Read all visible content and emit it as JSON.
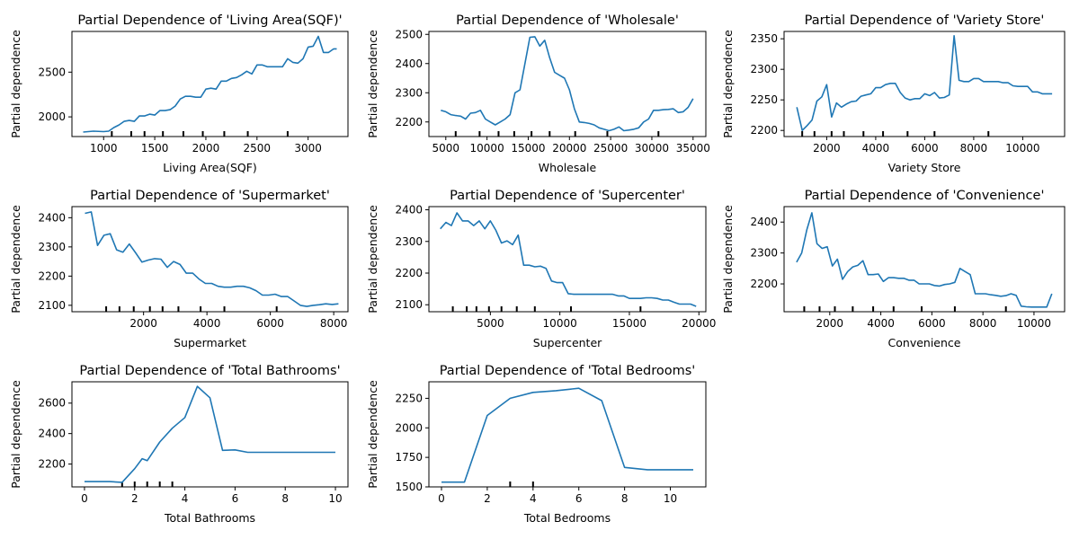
{
  "colors": {
    "line": "#1f77b4",
    "axis": "#000000",
    "background": "#ffffff"
  },
  "chart_data": [
    {
      "type": "line",
      "title": "Partial Dependence of 'Living Area(SQF)'",
      "xlabel": "Living Area(SQF)",
      "ylabel": "Partial dependence",
      "xlim": [
        690,
        3390
      ],
      "ylim": [
        1780,
        2955
      ],
      "xticks": [
        1000,
        1500,
        2000,
        2500,
        3000
      ],
      "yticks": [
        2000,
        2500
      ],
      "deciles": [
        1080,
        1270,
        1400,
        1580,
        1780,
        1970,
        2180,
        2410,
        2800
      ],
      "x": [
        800,
        900,
        1000,
        1050,
        1100,
        1150,
        1200,
        1250,
        1300,
        1350,
        1400,
        1450,
        1500,
        1550,
        1600,
        1650,
        1700,
        1750,
        1800,
        1850,
        1900,
        1950,
        2000,
        2050,
        2100,
        2150,
        2200,
        2250,
        2300,
        2350,
        2400,
        2450,
        2500,
        2550,
        2600,
        2650,
        2700,
        2750,
        2800,
        2850,
        2900,
        2950,
        3000,
        3050,
        3100,
        3150,
        3200,
        3250,
        3280
      ],
      "y": [
        1830,
        1840,
        1835,
        1840,
        1880,
        1910,
        1950,
        1960,
        1950,
        2010,
        2010,
        2030,
        2020,
        2070,
        2070,
        2080,
        2120,
        2200,
        2230,
        2230,
        2220,
        2220,
        2310,
        2320,
        2310,
        2400,
        2400,
        2430,
        2440,
        2470,
        2510,
        2480,
        2580,
        2580,
        2560,
        2560,
        2560,
        2560,
        2650,
        2610,
        2600,
        2650,
        2780,
        2790,
        2900,
        2720,
        2720,
        2760,
        2760
      ]
    },
    {
      "type": "line",
      "title": "Partial Dependence of 'Wholesale'",
      "xlabel": "Wholesale",
      "ylabel": "Partial dependence",
      "xlim": [
        2950,
        36550
      ],
      "ylim": [
        2150,
        2510
      ],
      "xticks": [
        5000,
        10000,
        15000,
        20000,
        25000,
        30000,
        35000
      ],
      "yticks": [
        2200,
        2300,
        2400,
        2500
      ],
      "deciles": [
        6200,
        9100,
        11400,
        13300,
        15400,
        17600,
        20700,
        24600,
        30800
      ],
      "x": [
        4400,
        5000,
        5600,
        6200,
        6800,
        7400,
        8000,
        8600,
        9200,
        9800,
        10400,
        11000,
        11600,
        12200,
        12800,
        13400,
        14000,
        14600,
        15200,
        15800,
        16400,
        17000,
        17600,
        18200,
        18800,
        19400,
        20000,
        20600,
        21200,
        21800,
        22400,
        23000,
        23600,
        24200,
        24800,
        25400,
        26000,
        26600,
        27200,
        27800,
        28400,
        29000,
        29600,
        30200,
        30800,
        31400,
        32000,
        32600,
        33200,
        33800,
        34400,
        35000
      ],
      "y": [
        2240,
        2235,
        2225,
        2222,
        2220,
        2210,
        2230,
        2232,
        2240,
        2210,
        2200,
        2190,
        2200,
        2210,
        2225,
        2300,
        2310,
        2400,
        2490,
        2492,
        2460,
        2480,
        2420,
        2370,
        2360,
        2350,
        2310,
        2245,
        2200,
        2198,
        2195,
        2190,
        2180,
        2175,
        2170,
        2175,
        2183,
        2170,
        2172,
        2175,
        2180,
        2200,
        2210,
        2240,
        2240,
        2242,
        2243,
        2245,
        2232,
        2235,
        2250,
        2280
      ]
    },
    {
      "type": "line",
      "title": "Partial Dependence of 'Variety Store'",
      "xlabel": "Variety Store",
      "ylabel": "Partial dependence",
      "xlim": [
        260,
        11710
      ],
      "ylim": [
        2190,
        2362
      ],
      "xticks": [
        2000,
        4000,
        6000,
        8000,
        10000
      ],
      "yticks": [
        2200,
        2250,
        2300,
        2350
      ],
      "deciles": [
        1000,
        1500,
        2200,
        2700,
        3500,
        4300,
        5300,
        6400,
        8600
      ],
      "x": [
        780,
        1000,
        1200,
        1400,
        1600,
        1800,
        2000,
        2200,
        2400,
        2600,
        2800,
        3000,
        3200,
        3400,
        3600,
        3800,
        4000,
        4200,
        4400,
        4600,
        4800,
        5000,
        5200,
        5400,
        5600,
        5800,
        6000,
        6200,
        6400,
        6600,
        6800,
        7000,
        7200,
        7400,
        7600,
        7800,
        8000,
        8200,
        8400,
        8600,
        8800,
        9000,
        9200,
        9400,
        9600,
        9800,
        10000,
        10200,
        10400,
        10600,
        10800,
        11000,
        11200
      ],
      "y": [
        2238,
        2200,
        2208,
        2217,
        2248,
        2255,
        2275,
        2222,
        2245,
        2238,
        2243,
        2247,
        2248,
        2256,
        2258,
        2260,
        2270,
        2270,
        2275,
        2277,
        2277,
        2262,
        2253,
        2250,
        2252,
        2252,
        2260,
        2257,
        2262,
        2253,
        2254,
        2258,
        2355,
        2282,
        2280,
        2280,
        2285,
        2285,
        2280,
        2280,
        2280,
        2280,
        2278,
        2278,
        2273,
        2272,
        2272,
        2272,
        2263,
        2263,
        2260,
        2260,
        2260
      ]
    },
    {
      "type": "line",
      "title": "Partial Dependence of 'Supermarket'",
      "xlabel": "Supermarket",
      "ylabel": "Partial dependence",
      "xlim": [
        -260,
        8450
      ],
      "ylim": [
        2078,
        2438
      ],
      "xticks": [
        2000,
        4000,
        6000,
        8000
      ],
      "yticks": [
        2100,
        2200,
        2300,
        2400
      ],
      "deciles": [
        820,
        1240,
        1690,
        2200,
        2600,
        3100,
        3800,
        4550,
        6200
      ],
      "x": [
        150,
        350,
        550,
        750,
        950,
        1150,
        1350,
        1550,
        1750,
        1950,
        2150,
        2350,
        2550,
        2750,
        2950,
        3150,
        3350,
        3550,
        3750,
        3950,
        4150,
        4350,
        4550,
        4750,
        4950,
        5150,
        5350,
        5550,
        5750,
        5950,
        6150,
        6350,
        6550,
        6750,
        6950,
        7150,
        7350,
        7550,
        7750,
        7950,
        8150
      ],
      "y": [
        2415,
        2420,
        2305,
        2340,
        2345,
        2290,
        2282,
        2310,
        2280,
        2248,
        2255,
        2260,
        2258,
        2230,
        2250,
        2240,
        2210,
        2210,
        2190,
        2175,
        2175,
        2165,
        2162,
        2162,
        2165,
        2165,
        2160,
        2150,
        2135,
        2135,
        2138,
        2130,
        2130,
        2115,
        2100,
        2096,
        2100,
        2102,
        2105,
        2103,
        2105
      ]
    },
    {
      "type": "line",
      "title": "Partial Dependence of 'Supercenter'",
      "xlabel": "Supercenter",
      "ylabel": "Partial dependence",
      "xlim": [
        580,
        20500
      ],
      "ylim": [
        2078,
        2410
      ],
      "xticks": [
        5000,
        10000,
        15000,
        20000
      ],
      "yticks": [
        2100,
        2200,
        2300,
        2400
      ],
      "deciles": [
        2300,
        3300,
        4000,
        4900,
        5800,
        6900,
        8200,
        10800,
        15800
      ],
      "x": [
        1400,
        1800,
        2200,
        2600,
        3000,
        3400,
        3800,
        4200,
        4600,
        5000,
        5400,
        5800,
        6200,
        6600,
        7000,
        7400,
        7800,
        8200,
        8600,
        9000,
        9400,
        9800,
        10200,
        10600,
        11000,
        11400,
        11800,
        12200,
        12600,
        13000,
        13400,
        13800,
        14200,
        14600,
        15000,
        15400,
        15800,
        16200,
        16600,
        17000,
        17400,
        17800,
        18200,
        18600,
        19000,
        19400,
        19800
      ],
      "y": [
        2340,
        2360,
        2350,
        2390,
        2365,
        2365,
        2350,
        2365,
        2340,
        2365,
        2335,
        2295,
        2302,
        2290,
        2320,
        2225,
        2225,
        2220,
        2222,
        2215,
        2175,
        2170,
        2170,
        2135,
        2133,
        2133,
        2133,
        2133,
        2133,
        2133,
        2133,
        2133,
        2128,
        2128,
        2120,
        2120,
        2120,
        2122,
        2122,
        2120,
        2115,
        2115,
        2108,
        2102,
        2102,
        2102,
        2095
      ]
    },
    {
      "type": "line",
      "title": "Partial Dependence of 'Convenience'",
      "xlabel": "Convenience",
      "ylabel": "Partial dependence",
      "xlim": [
        210,
        11200
      ],
      "ylim": [
        2110,
        2450
      ],
      "xticks": [
        2000,
        4000,
        6000,
        8000,
        10000
      ],
      "yticks": [
        2200,
        2300,
        2400
      ],
      "deciles": [
        1000,
        1600,
        2200,
        2900,
        3700,
        4500,
        5600,
        6900,
        8900
      ],
      "x": [
        700,
        900,
        1100,
        1300,
        1500,
        1700,
        1900,
        2100,
        2300,
        2500,
        2700,
        2900,
        3100,
        3300,
        3500,
        3700,
        3900,
        4100,
        4300,
        4500,
        4700,
        4900,
        5100,
        5300,
        5500,
        5700,
        5900,
        6100,
        6300,
        6500,
        6700,
        6900,
        7100,
        7300,
        7500,
        7700,
        7900,
        8100,
        8300,
        8500,
        8700,
        8900,
        9100,
        9300,
        9500,
        9700,
        9900,
        10100,
        10300,
        10500,
        10700
      ],
      "y": [
        2270,
        2300,
        2375,
        2430,
        2330,
        2315,
        2320,
        2258,
        2280,
        2215,
        2240,
        2255,
        2260,
        2275,
        2230,
        2230,
        2232,
        2208,
        2220,
        2220,
        2218,
        2218,
        2212,
        2212,
        2200,
        2200,
        2200,
        2195,
        2193,
        2198,
        2200,
        2205,
        2250,
        2240,
        2230,
        2168,
        2168,
        2168,
        2165,
        2163,
        2160,
        2162,
        2168,
        2163,
        2128,
        2126,
        2125,
        2125,
        2125,
        2125,
        2168
      ]
    },
    {
      "type": "line",
      "title": "Partial Dependence of 'Total Bathrooms'",
      "xlabel": "Total Bathrooms",
      "ylabel": "Partial dependence",
      "xlim": [
        -0.5,
        10.5
      ],
      "ylim": [
        2050,
        2740
      ],
      "xticks": [
        0,
        2,
        4,
        6,
        8,
        10
      ],
      "yticks": [
        2200,
        2400,
        2600
      ],
      "deciles": [
        1.5,
        2.0,
        2.5,
        3.0,
        3.5
      ],
      "x": [
        0,
        1,
        1.5,
        2,
        2.3,
        2.5,
        3,
        3.5,
        4,
        4.5,
        5,
        5.5,
        6,
        6.5,
        7,
        8,
        9,
        10
      ],
      "y": [
        2085,
        2085,
        2080,
        2170,
        2235,
        2222,
        2345,
        2435,
        2505,
        2710,
        2635,
        2290,
        2293,
        2277,
        2277,
        2277,
        2277,
        2277
      ]
    },
    {
      "type": "line",
      "title": "Partial Dependence of 'Total Bedrooms'",
      "xlabel": "Total Bedrooms",
      "ylabel": "Partial dependence",
      "xlim": [
        -0.55,
        11.55
      ],
      "ylim": [
        1500,
        2390
      ],
      "xticks": [
        0,
        2,
        4,
        6,
        8,
        10
      ],
      "yticks": [
        1500,
        1750,
        2000,
        2250
      ],
      "deciles": [
        3,
        4
      ],
      "x": [
        0,
        1,
        2,
        3,
        4,
        5,
        6,
        7,
        8,
        9,
        10,
        11
      ],
      "y": [
        1540,
        1540,
        2105,
        2250,
        2300,
        2315,
        2335,
        2230,
        1665,
        1645,
        1645,
        1645
      ]
    }
  ]
}
